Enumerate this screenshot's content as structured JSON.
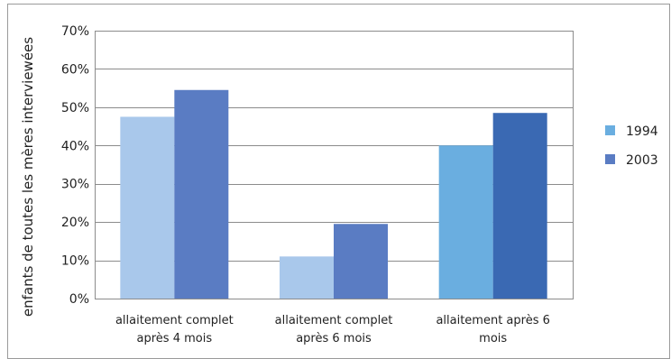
{
  "chart_data": {
    "type": "bar",
    "title": "",
    "xlabel": "",
    "ylabel": "enfants de toutes les mères interviewées",
    "ylim": [
      0,
      70
    ],
    "ytick_values": [
      0,
      10,
      20,
      30,
      40,
      50,
      60,
      70
    ],
    "ytick_labels": [
      "0%",
      "10%",
      "20%",
      "30%",
      "40%",
      "50%",
      "60%",
      "70%"
    ],
    "grid": true,
    "legend_position": "right",
    "categories": [
      [
        "allaitement complet",
        "après 4 mois"
      ],
      [
        "allaitement complet",
        "après 6 mois"
      ],
      [
        "allaitement après 6",
        "mois"
      ]
    ],
    "series": [
      {
        "name": "1994",
        "values": [
          47.5,
          11,
          40
        ],
        "bar_colors": [
          "#a9c8eb",
          "#a9c8eb",
          "#6aaee0"
        ],
        "legend_color": "#6aaee0"
      },
      {
        "name": "2003",
        "values": [
          54.5,
          19.5,
          48.5
        ],
        "bar_colors": [
          "#5a7cc3",
          "#5a7cc3",
          "#3a69b3"
        ],
        "legend_color": "#5a7cc3"
      }
    ]
  }
}
